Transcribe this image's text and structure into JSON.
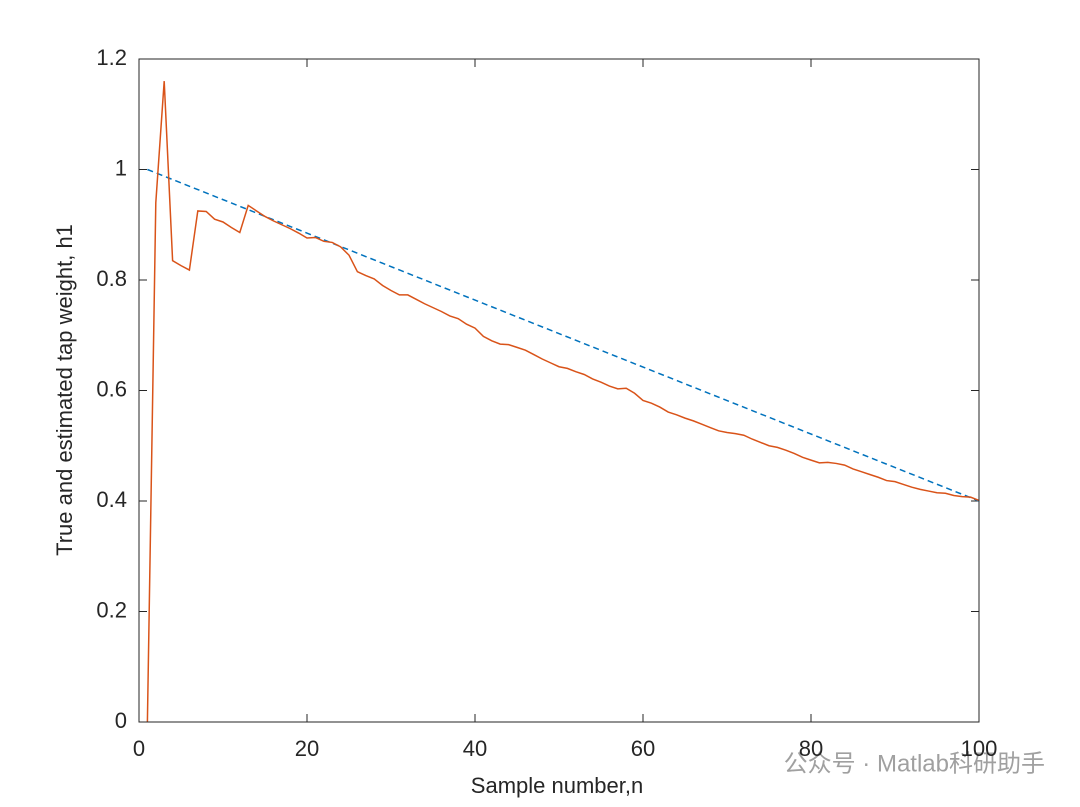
{
  "chart_data": {
    "type": "line",
    "xlabel": "Sample number,n",
    "ylabel": "True and estimated tap weight, h1",
    "watermark": "公众号 · Matlab科研助手",
    "xlim": [
      0,
      100
    ],
    "ylim": [
      0,
      1.2
    ],
    "xticks": [
      0,
      20,
      40,
      60,
      80,
      100
    ],
    "yticks": [
      0,
      0.2,
      0.4,
      0.6,
      0.8,
      1,
      1.2
    ],
    "box": true,
    "series": [
      {
        "color": "#0072bd",
        "linestyle": "dashed",
        "x": [
          1,
          100
        ],
        "values": [
          1,
          0.4
        ]
      },
      {
        "color": "#d95319",
        "linestyle": "solid",
        "x": [
          1,
          2,
          3,
          4,
          5,
          6,
          7,
          8,
          9,
          10,
          11,
          12,
          13,
          14,
          15,
          16,
          17,
          18,
          19,
          20,
          21,
          22,
          23,
          24,
          25,
          26,
          27,
          28,
          29,
          30,
          31,
          32,
          33,
          34,
          35,
          36,
          37,
          38,
          39,
          40,
          41,
          42,
          43,
          44,
          45,
          46,
          47,
          48,
          49,
          50,
          51,
          52,
          53,
          54,
          55,
          56,
          57,
          58,
          59,
          60,
          61,
          62,
          63,
          64,
          65,
          66,
          67,
          68,
          69,
          70,
          71,
          72,
          73,
          74,
          75,
          76,
          77,
          78,
          79,
          80,
          81,
          82,
          83,
          84,
          85,
          86,
          87,
          88,
          89,
          90,
          91,
          92,
          93,
          94,
          95,
          96,
          97,
          98,
          99,
          100
        ],
        "values": [
          0,
          0.94,
          1.16,
          0.835,
          0.826,
          0.818,
          0.925,
          0.924,
          0.91,
          0.905,
          0.895,
          0.886,
          0.935,
          0.925,
          0.915,
          0.907,
          0.9,
          0.893,
          0.885,
          0.876,
          0.877,
          0.87,
          0.868,
          0.86,
          0.845,
          0.815,
          0.808,
          0.802,
          0.79,
          0.781,
          0.773,
          0.773,
          0.765,
          0.757,
          0.75,
          0.743,
          0.735,
          0.73,
          0.72,
          0.713,
          0.698,
          0.69,
          0.684,
          0.683,
          0.678,
          0.673,
          0.665,
          0.657,
          0.65,
          0.643,
          0.64,
          0.634,
          0.629,
          0.621,
          0.615,
          0.608,
          0.603,
          0.604,
          0.595,
          0.582,
          0.577,
          0.57,
          0.561,
          0.556,
          0.55,
          0.545,
          0.539,
          0.533,
          0.527,
          0.524,
          0.522,
          0.519,
          0.512,
          0.506,
          0.5,
          0.497,
          0.492,
          0.486,
          0.479,
          0.474,
          0.469,
          0.47,
          0.468,
          0.465,
          0.458,
          0.453,
          0.448,
          0.443,
          0.437,
          0.435,
          0.43,
          0.425,
          0.421,
          0.418,
          0.415,
          0.414,
          0.41,
          0.408,
          0.407,
          0.401
        ]
      }
    ]
  }
}
